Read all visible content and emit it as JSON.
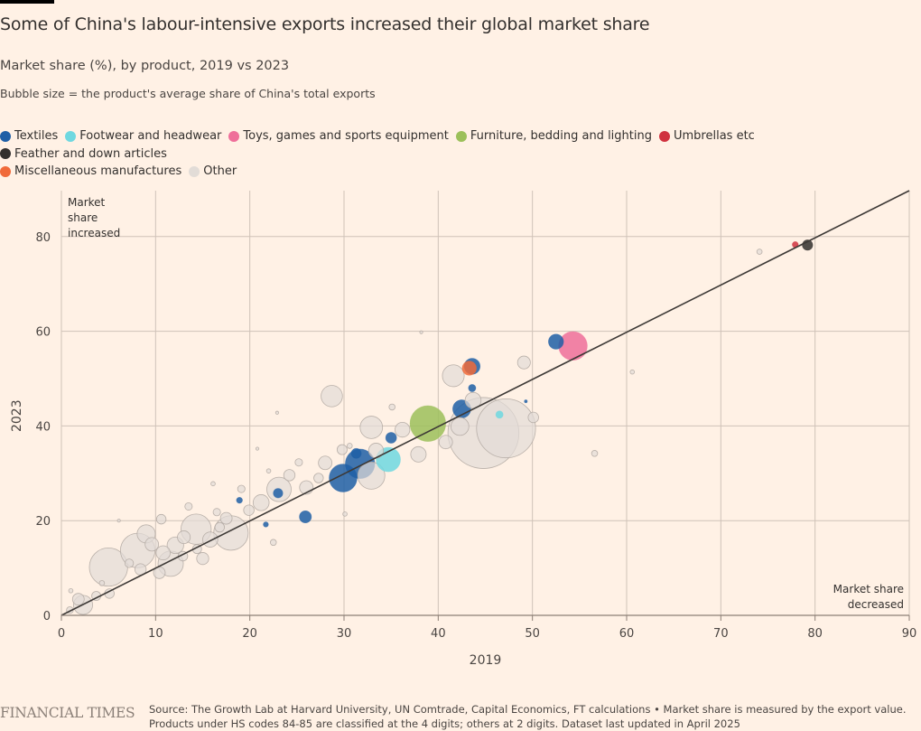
{
  "header": {
    "title": "Some of China's labour-intensive exports increased their global market share",
    "subtitle": "Market share (%), by product, 2019 vs 2023",
    "note": "Bubble size = the product's average share of China's total exports"
  },
  "legend": [
    {
      "key": "textiles",
      "label": "Textiles",
      "color": "#1f5fa6"
    },
    {
      "key": "footwear",
      "label": "Footwear and headwear",
      "color": "#6fd8e0"
    },
    {
      "key": "toys",
      "label": "Toys, games and sports equipment",
      "color": "#ef6f9a"
    },
    {
      "key": "furniture",
      "label": "Furniture, bedding and lighting",
      "color": "#9cc05a"
    },
    {
      "key": "umbrellas",
      "label": "Umbrellas etc",
      "color": "#d0323f"
    },
    {
      "key": "feather",
      "label": "Feather and down articles",
      "color": "#33302e"
    },
    {
      "key": "misc",
      "label": "Miscellaneous manufactures",
      "color": "#f06a3a"
    },
    {
      "key": "other",
      "label": "Other",
      "color": "#e2dcd7"
    }
  ],
  "footer": {
    "brand": "FINANCIAL TIMES",
    "source": "Source: The Growth Lab at Harvard University, UN Comtrade, Capital Economics, FT calculations • Market share is measured by the export value. Products under HS codes 84-85 are classified at the 4 digits; others at 2 digits. Dataset last updated in April 2025"
  },
  "chart_data": {
    "type": "scatter",
    "title": "Some of China's labour-intensive exports increased their global market share",
    "subtitle": "Market share (%), by product, 2019 vs 2023",
    "xlabel": "2019",
    "ylabel": "2023",
    "xlim": [
      0,
      90
    ],
    "ylim": [
      0,
      90
    ],
    "xticks": [
      "0",
      "10",
      "20",
      "30",
      "40",
      "50",
      "60",
      "70",
      "80",
      "90"
    ],
    "yticks": [
      "0",
      "20",
      "40",
      "60",
      "80"
    ],
    "grid": true,
    "reference_line": {
      "label": "y = x",
      "from": [
        0,
        0
      ],
      "to": [
        90,
        90
      ]
    },
    "annotations": [
      {
        "text": [
          "Market",
          "share",
          "increased"
        ],
        "position": "top-left"
      },
      {
        "text": [
          "Market share",
          "decreased"
        ],
        "position": "bottom-right"
      }
    ],
    "size_meaning": "Bubble size = the product's average share of China's total exports",
    "points": [
      {
        "category": "toys",
        "x": 54.3,
        "y": 56.9,
        "size": 9
      },
      {
        "category": "textiles",
        "x": 52.5,
        "y": 57.8,
        "size": 2.5
      },
      {
        "category": "textiles",
        "x": 43.6,
        "y": 52.6,
        "size": 2.8
      },
      {
        "category": "misc",
        "x": 43.3,
        "y": 52.2,
        "size": 2.2
      },
      {
        "category": "textiles",
        "x": 43.6,
        "y": 48.0,
        "size": 0.6
      },
      {
        "category": "textiles",
        "x": 42.5,
        "y": 43.6,
        "size": 3.6
      },
      {
        "category": "textiles",
        "x": 49.3,
        "y": 45.2,
        "size": 0.1
      },
      {
        "category": "footwear",
        "x": 46.5,
        "y": 42.4,
        "size": 0.6
      },
      {
        "category": "furniture",
        "x": 38.9,
        "y": 40.5,
        "size": 14
      },
      {
        "category": "footwear",
        "x": 34.7,
        "y": 32.9,
        "size": 6.5
      },
      {
        "category": "textiles",
        "x": 35.0,
        "y": 37.5,
        "size": 1.3
      },
      {
        "category": "textiles",
        "x": 31.7,
        "y": 32.0,
        "size": 9.5
      },
      {
        "category": "textiles",
        "x": 29.9,
        "y": 29.0,
        "size": 8.5
      },
      {
        "category": "textiles",
        "x": 31.3,
        "y": 34.2,
        "size": 1.1
      },
      {
        "category": "textiles",
        "x": 23.0,
        "y": 25.8,
        "size": 1.0
      },
      {
        "category": "textiles",
        "x": 25.9,
        "y": 20.8,
        "size": 1.6
      },
      {
        "category": "textiles",
        "x": 18.9,
        "y": 24.3,
        "size": 0.4
      },
      {
        "category": "textiles",
        "x": 21.7,
        "y": 19.2,
        "size": 0.3
      },
      {
        "category": "umbrellas",
        "x": 77.9,
        "y": 78.3,
        "size": 0.4
      },
      {
        "category": "feather",
        "x": 79.2,
        "y": 78.2,
        "size": 1.2
      },
      {
        "category": "other",
        "x": 74.1,
        "y": 76.8,
        "size": 0.3
      },
      {
        "category": "other",
        "x": 60.6,
        "y": 51.4,
        "size": 0.2
      },
      {
        "category": "other",
        "x": 56.6,
        "y": 34.2,
        "size": 0.4
      },
      {
        "category": "other",
        "x": 49.1,
        "y": 53.4,
        "size": 1.8
      },
      {
        "category": "other",
        "x": 50.1,
        "y": 41.8,
        "size": 1.2
      },
      {
        "category": "other",
        "x": 44.8,
        "y": 38.5,
        "size": 55
      },
      {
        "category": "other",
        "x": 47.2,
        "y": 39.5,
        "size": 38
      },
      {
        "category": "other",
        "x": 41.6,
        "y": 50.6,
        "size": 5.2
      },
      {
        "category": "other",
        "x": 43.7,
        "y": 45.4,
        "size": 2.8
      },
      {
        "category": "other",
        "x": 40.8,
        "y": 36.6,
        "size": 2.0
      },
      {
        "category": "other",
        "x": 42.3,
        "y": 39.9,
        "size": 3.5
      },
      {
        "category": "other",
        "x": 28.7,
        "y": 46.3,
        "size": 5.0
      },
      {
        "category": "other",
        "x": 35.1,
        "y": 44.0,
        "size": 0.4
      },
      {
        "category": "other",
        "x": 38.2,
        "y": 59.8,
        "size": 0.1
      },
      {
        "category": "other",
        "x": 32.9,
        "y": 39.7,
        "size": 5.5
      },
      {
        "category": "other",
        "x": 37.9,
        "y": 34.0,
        "size": 2.6
      },
      {
        "category": "other",
        "x": 36.2,
        "y": 39.2,
        "size": 2.4
      },
      {
        "category": "other",
        "x": 32.9,
        "y": 29.5,
        "size": 8.0
      },
      {
        "category": "other",
        "x": 33.4,
        "y": 34.8,
        "size": 2.4
      },
      {
        "category": "other",
        "x": 28.0,
        "y": 32.2,
        "size": 2.0
      },
      {
        "category": "other",
        "x": 29.8,
        "y": 35.0,
        "size": 1.1
      },
      {
        "category": "other",
        "x": 30.6,
        "y": 35.8,
        "size": 0.3
      },
      {
        "category": "other",
        "x": 26.0,
        "y": 27.0,
        "size": 2.0
      },
      {
        "category": "other",
        "x": 24.2,
        "y": 29.6,
        "size": 1.4
      },
      {
        "category": "other",
        "x": 23.1,
        "y": 26.6,
        "size": 6.5
      },
      {
        "category": "other",
        "x": 22.9,
        "y": 42.8,
        "size": 0.1
      },
      {
        "category": "other",
        "x": 22.0,
        "y": 30.5,
        "size": 0.2
      },
      {
        "category": "other",
        "x": 21.2,
        "y": 23.8,
        "size": 2.8
      },
      {
        "category": "other",
        "x": 20.8,
        "y": 35.2,
        "size": 0.1
      },
      {
        "category": "other",
        "x": 19.1,
        "y": 26.7,
        "size": 0.6
      },
      {
        "category": "other",
        "x": 18.0,
        "y": 17.4,
        "size": 13
      },
      {
        "category": "other",
        "x": 17.5,
        "y": 20.5,
        "size": 1.5
      },
      {
        "category": "other",
        "x": 16.5,
        "y": 21.8,
        "size": 0.6
      },
      {
        "category": "other",
        "x": 15.8,
        "y": 16.0,
        "size": 2.5
      },
      {
        "category": "other",
        "x": 14.3,
        "y": 18.2,
        "size": 10
      },
      {
        "category": "other",
        "x": 13.5,
        "y": 23.0,
        "size": 0.6
      },
      {
        "category": "other",
        "x": 13.0,
        "y": 16.5,
        "size": 1.8
      },
      {
        "category": "other",
        "x": 12.1,
        "y": 14.8,
        "size": 3.0
      },
      {
        "category": "other",
        "x": 11.6,
        "y": 10.9,
        "size": 7.0
      },
      {
        "category": "other",
        "x": 10.8,
        "y": 13.2,
        "size": 2.2
      },
      {
        "category": "other",
        "x": 10.6,
        "y": 20.3,
        "size": 1.0
      },
      {
        "category": "other",
        "x": 10.4,
        "y": 9.0,
        "size": 1.5
      },
      {
        "category": "other",
        "x": 9.6,
        "y": 15.0,
        "size": 2.0
      },
      {
        "category": "other",
        "x": 9.0,
        "y": 17.2,
        "size": 3.6
      },
      {
        "category": "other",
        "x": 8.1,
        "y": 13.7,
        "size": 13
      },
      {
        "category": "other",
        "x": 8.4,
        "y": 9.7,
        "size": 1.4
      },
      {
        "category": "other",
        "x": 7.2,
        "y": 11.0,
        "size": 0.8
      },
      {
        "category": "other",
        "x": 6.1,
        "y": 20.0,
        "size": 0.1
      },
      {
        "category": "other",
        "x": 5.0,
        "y": 10.2,
        "size": 16
      },
      {
        "category": "other",
        "x": 5.1,
        "y": 4.6,
        "size": 1.0
      },
      {
        "category": "other",
        "x": 4.3,
        "y": 6.8,
        "size": 0.3
      },
      {
        "category": "other",
        "x": 3.7,
        "y": 4.1,
        "size": 0.9
      },
      {
        "category": "other",
        "x": 2.3,
        "y": 2.2,
        "size": 4.0
      },
      {
        "category": "other",
        "x": 1.8,
        "y": 3.4,
        "size": 1.5
      },
      {
        "category": "other",
        "x": 1.0,
        "y": 5.2,
        "size": 0.2
      },
      {
        "category": "other",
        "x": 0.9,
        "y": 1.1,
        "size": 0.5
      },
      {
        "category": "other",
        "x": 15.0,
        "y": 12.0,
        "size": 1.6
      },
      {
        "category": "other",
        "x": 16.8,
        "y": 18.6,
        "size": 1.0
      },
      {
        "category": "other",
        "x": 19.9,
        "y": 22.2,
        "size": 1.2
      },
      {
        "category": "other",
        "x": 27.3,
        "y": 29.0,
        "size": 1.0
      },
      {
        "category": "other",
        "x": 22.5,
        "y": 15.4,
        "size": 0.4
      },
      {
        "category": "other",
        "x": 30.1,
        "y": 21.4,
        "size": 0.2
      },
      {
        "category": "other",
        "x": 16.1,
        "y": 27.8,
        "size": 0.2
      },
      {
        "category": "other",
        "x": 12.9,
        "y": 12.5,
        "size": 1.0
      },
      {
        "category": "other",
        "x": 14.4,
        "y": 14.0,
        "size": 0.9
      },
      {
        "category": "other",
        "x": 25.2,
        "y": 32.3,
        "size": 0.6
      }
    ]
  }
}
